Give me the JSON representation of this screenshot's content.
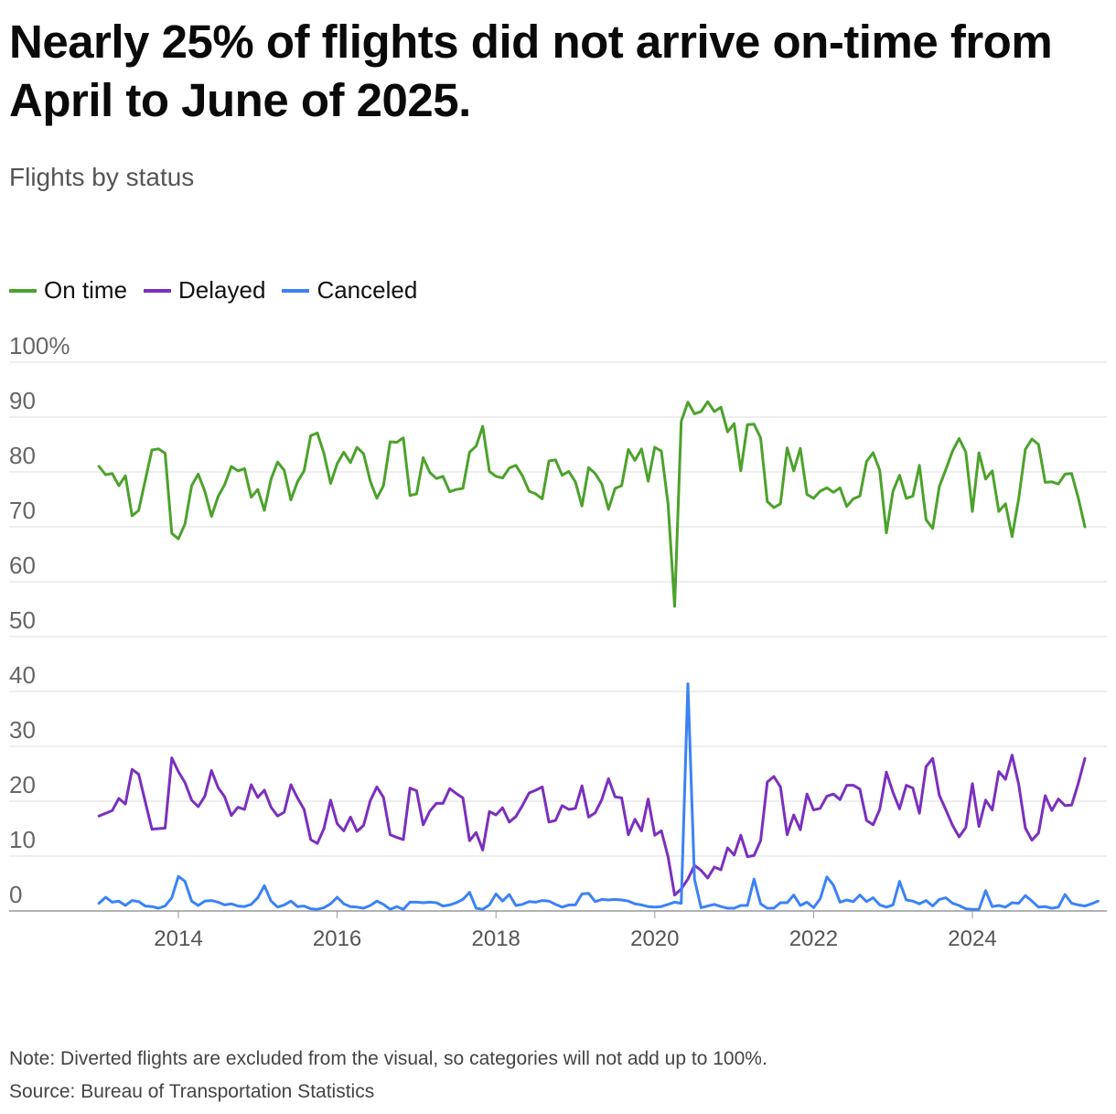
{
  "header": {
    "title": "Nearly 25% of flights did not arrive on-time from April to June of 2025.",
    "subtitle": "Flights by status"
  },
  "footer": {
    "note": "Note: Diverted flights are excluded from the visual, so categories will not add up to 100%.",
    "source": "Source: Bureau of Transportation Statistics"
  },
  "chart_data": {
    "type": "line",
    "title": "Nearly 25% of flights did not arrive on-time from April to June of 2025.",
    "subtitle": "Flights by status",
    "xlabel": "",
    "ylabel": "",
    "x_start": 2013.0,
    "x_step_years": 0.0833333,
    "xlim": [
      2012.83,
      2025.75
    ],
    "ylim": [
      0,
      100
    ],
    "grid": true,
    "legend_position": "top-left",
    "x_ticks": [
      2014,
      2016,
      2018,
      2020,
      2022,
      2024
    ],
    "x_tick_labels": [
      "2014",
      "2016",
      "2018",
      "2020",
      "2022",
      "2024"
    ],
    "y_ticks": [
      0,
      10,
      20,
      30,
      40,
      50,
      60,
      70,
      80,
      90,
      100
    ],
    "y_tick_labels": [
      "0",
      "10",
      "20",
      "30",
      "40",
      "50",
      "60",
      "70",
      "80",
      "90",
      "100%"
    ],
    "series": [
      {
        "name": "On time",
        "color": "#4ca22b",
        "values": [
          81,
          79.5,
          79.7,
          77.5,
          79.3,
          72,
          73,
          78.5,
          84,
          84.2,
          83.4,
          68.8,
          67.8,
          70.5,
          77.5,
          79.6,
          76.5,
          71.9,
          75.5,
          77.7,
          81,
          80.2,
          80.6,
          75.4,
          76.8,
          73,
          78.7,
          81.8,
          80.3,
          74.9,
          78.2,
          80.2,
          86.6,
          87.1,
          83.4,
          77.9,
          81.5,
          83.6,
          81.7,
          84.5,
          83.3,
          78.3,
          75.2,
          77.5,
          85.5,
          85.4,
          86.2,
          75.7,
          76,
          82.6,
          79.9,
          78.8,
          79.2,
          76.4,
          76.8,
          77,
          83.6,
          84.7,
          88.3,
          80.1,
          79.2,
          78.9,
          80.7,
          81.2,
          79.3,
          76.5,
          76,
          75.1,
          82,
          82.2,
          79.4,
          80.1,
          78.2,
          73.8,
          80.8,
          79.7,
          77.8,
          73.2,
          77,
          77.5,
          84.1,
          82.1,
          84.2,
          78.3,
          84.5,
          83.8,
          74.2,
          55.5,
          89.2,
          92.7,
          90.6,
          91,
          92.8,
          91,
          91.8,
          87.3,
          88.8,
          80.2,
          88.6,
          88.7,
          86.2,
          74.6,
          73.5,
          74.2,
          84.4,
          80.2,
          84.3,
          75.9,
          75.2,
          76.5,
          77.1,
          76.3,
          77.1,
          73.7,
          75.1,
          75.6,
          81.9,
          83.5,
          80.3,
          68.9,
          76.5,
          79.4,
          75.2,
          75.6,
          81.2,
          71.3,
          69.7,
          77.3,
          80.5,
          83.8,
          86.1,
          83.6,
          72.8,
          83.5,
          78.7,
          80.2,
          72.8,
          74.2,
          68.2,
          75.1,
          84.1,
          86,
          85,
          78.1,
          78.2,
          77.8,
          79.6,
          79.7,
          75.3,
          70
        ]
      },
      {
        "name": "Delayed",
        "color": "#7b2fbe",
        "values": [
          17.3,
          17.8,
          18.3,
          20.5,
          19.5,
          25.8,
          24.9,
          19.9,
          14.9,
          15,
          15.1,
          27.9,
          25.4,
          23.4,
          20.2,
          19,
          20.9,
          25.6,
          22.5,
          20.8,
          17.4,
          18.9,
          18.5,
          23,
          20.7,
          22,
          18.9,
          17.3,
          18,
          23,
          20.6,
          18.5,
          13,
          12.3,
          15,
          20.2,
          15.9,
          14.6,
          17.1,
          14.5,
          15.6,
          20.1,
          22.6,
          20.7,
          13.9,
          13.4,
          13,
          22.4,
          21.9,
          15.7,
          18.2,
          19.6,
          19.6,
          22.3,
          21.4,
          20.6,
          12.8,
          14.3,
          11.1,
          18.1,
          17.5,
          18.8,
          16.2,
          17.2,
          19.2,
          21.5,
          22,
          22.6,
          16.2,
          16.5,
          19.2,
          18.5,
          18.7,
          22.8,
          17.1,
          17.9,
          20.3,
          24.1,
          20.8,
          20.6,
          13.9,
          16.7,
          14.6,
          20.4,
          13.8,
          14.6,
          9.9,
          2.9,
          4,
          5.8,
          8.3,
          7.4,
          6,
          8,
          7.5,
          11.5,
          10.2,
          13.8,
          9.9,
          10.1,
          12.8,
          23.5,
          24.5,
          22.6,
          13.9,
          17.5,
          14.8,
          21.3,
          18.4,
          18.7,
          20.9,
          21.3,
          20.3,
          22.9,
          22.9,
          22.2,
          16.5,
          15.7,
          18.5,
          25.3,
          21.6,
          18.6,
          22.9,
          22.4,
          17.8,
          26.3,
          27.8,
          21.1,
          18.4,
          15.6,
          13.5,
          15.2,
          23.2,
          15.4,
          20.2,
          18.4,
          25.4,
          24,
          28.4,
          23.1,
          15.1,
          12.9,
          14.2,
          21,
          18.3,
          20.4,
          19.2,
          19.3,
          23.2,
          27.8
        ]
      },
      {
        "name": "Canceled",
        "color": "#3b82f6",
        "values": [
          1.4,
          2.5,
          1.6,
          1.8,
          1,
          1.9,
          1.7,
          0.9,
          0.8,
          0.5,
          0.9,
          2.4,
          6.3,
          5.4,
          1.8,
          1,
          1.8,
          1.9,
          1.6,
          1.1,
          1.3,
          0.9,
          0.8,
          1.2,
          2.4,
          4.6,
          1.8,
          0.7,
          1.1,
          1.8,
          0.8,
          0.9,
          0.4,
          0.3,
          0.6,
          1.3,
          2.5,
          1.3,
          0.8,
          0.7,
          0.5,
          1,
          1.8,
          1.2,
          0.3,
          0.8,
          0.3,
          1.6,
          1.6,
          1.5,
          1.6,
          1.5,
          0.9,
          1.1,
          1.5,
          2.1,
          3.4,
          0.5,
          0.3,
          1.1,
          3.1,
          1.8,
          3,
          1,
          1.2,
          1.7,
          1.6,
          1.9,
          1.8,
          1.2,
          0.7,
          1.1,
          1.1,
          3.1,
          3.2,
          1.7,
          2.1,
          2,
          2.1,
          2,
          1.8,
          1.3,
          1.1,
          0.8,
          0.7,
          0.8,
          1.2,
          1.6,
          1.4,
          41.4,
          5.8,
          0.6,
          0.9,
          1.2,
          0.8,
          0.5,
          0.5,
          1,
          1,
          5.8,
          1.3,
          0.5,
          0.5,
          1.5,
          1.5,
          2.9,
          1,
          1.6,
          0.6,
          2.2,
          6.2,
          4.7,
          1.6,
          2,
          1.7,
          2.9,
          1.7,
          2.4,
          1.1,
          0.7,
          1.1,
          5.4,
          2,
          1.8,
          1.3,
          1.9,
          0.9,
          2.1,
          2.4,
          1.4,
          1,
          0.4,
          0.3,
          0.3,
          3.7,
          0.8,
          1,
          0.7,
          1.5,
          1.4,
          2.8,
          1.8,
          0.7,
          0.8,
          0.5,
          0.7,
          3,
          1.4,
          1.1,
          0.9,
          1.3,
          1.8
        ]
      }
    ]
  }
}
